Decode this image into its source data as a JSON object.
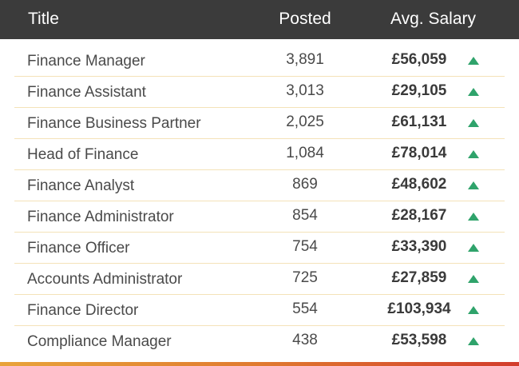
{
  "header": {
    "title_label": "Title",
    "posted_label": "Posted",
    "salary_label": "Avg. Salary"
  },
  "colors": {
    "header_bg": "#3b3b3b",
    "trend_up": "#2fa36b",
    "row_divider": "#f4e2b8"
  },
  "rows": [
    {
      "title": "Finance Manager",
      "posted": "3,891",
      "salary": "£56,059",
      "trend": "up-arrow-icon"
    },
    {
      "title": "Finance Assistant",
      "posted": "3,013",
      "salary": "£29,105",
      "trend": "up-arrow-icon"
    },
    {
      "title": "Finance Business Partner",
      "posted": "2,025",
      "salary": "£61,131",
      "trend": "up-arrow-icon"
    },
    {
      "title": "Head of Finance",
      "posted": "1,084",
      "salary": "£78,014",
      "trend": "up-arrow-icon"
    },
    {
      "title": "Finance Analyst",
      "posted": "869",
      "salary": "£48,602",
      "trend": "up-arrow-icon"
    },
    {
      "title": "Finance Administrator",
      "posted": "854",
      "salary": "£28,167",
      "trend": "up-arrow-icon"
    },
    {
      "title": "Finance Officer",
      "posted": "754",
      "salary": "£33,390",
      "trend": "up-arrow-icon"
    },
    {
      "title": "Accounts Administrator",
      "posted": "725",
      "salary": "£27,859",
      "trend": "up-arrow-icon"
    },
    {
      "title": "Finance Director",
      "posted": "554",
      "salary": "£103,934",
      "trend": "up-arrow-icon"
    },
    {
      "title": "Compliance Manager",
      "posted": "438",
      "salary": "£53,598",
      "trend": "up-arrow-icon"
    }
  ]
}
